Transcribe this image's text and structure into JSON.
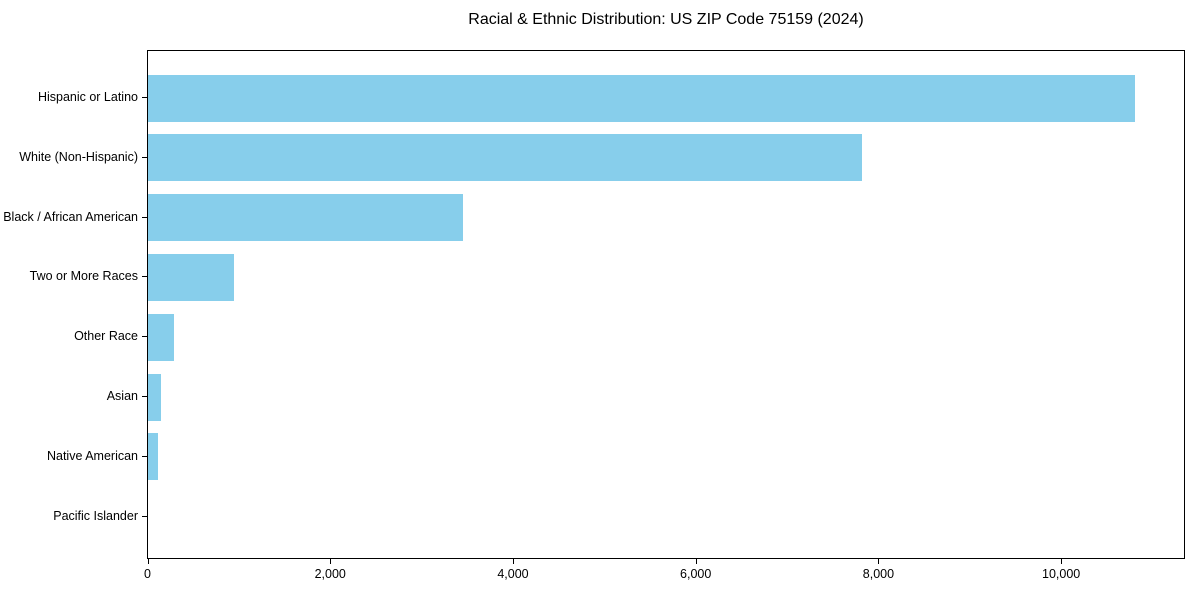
{
  "chart_data": {
    "type": "bar",
    "orientation": "horizontal",
    "title": "Racial & Ethnic Distribution: US ZIP Code 75159 (2024)",
    "categories": [
      "Hispanic or Latino",
      "White (Non-Hispanic)",
      "Black / African American",
      "Two or More Races",
      "Other Race",
      "Asian",
      "Native American",
      "Pacific Islander"
    ],
    "values": [
      10800,
      7820,
      3450,
      940,
      280,
      140,
      110,
      0
    ],
    "xlabel": "",
    "ylabel": "",
    "xlim": [
      0,
      11350
    ],
    "x_ticks": [
      0,
      2000,
      4000,
      6000,
      8000,
      10000
    ],
    "x_tick_labels": [
      "0",
      "2,000",
      "4,000",
      "6,000",
      "8,000",
      "10,000"
    ],
    "grid": false,
    "legend": null,
    "bar_color": "#87CEEB",
    "background_color": "#ffffff",
    "spine_color": "#000000",
    "text_color": "#000000"
  }
}
